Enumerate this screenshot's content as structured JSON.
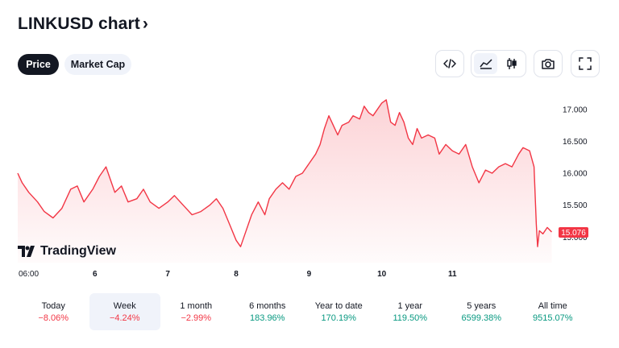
{
  "header": {
    "title": "LINKUSD chart",
    "chevron": "›"
  },
  "tabs": [
    {
      "label": "Price",
      "active": true
    },
    {
      "label": "Market Cap",
      "active": false
    }
  ],
  "toolbar": {
    "embed_icon": "code-icon",
    "area_icon": "area-chart-icon",
    "candle_icon": "candlestick-icon",
    "snapshot_icon": "camera-icon",
    "fullscreen_icon": "fullscreen-icon"
  },
  "branding": {
    "logo_text": "TradingView"
  },
  "colors": {
    "line": "#f23645",
    "last_price_bg": "#f23645",
    "positive": "#089981",
    "negative": "#f23645"
  },
  "chart_data": {
    "type": "area",
    "x_tick_labels": [
      "06:00",
      "6",
      "7",
      "8",
      "9",
      "10",
      "11"
    ],
    "y_tick_labels": [
      "17.000",
      "16.500",
      "16.000",
      "15.500",
      "15.000"
    ],
    "ylim": [
      14.6,
      17.3
    ],
    "last_price_label": "15.076",
    "points": [
      [
        0,
        16.0
      ],
      [
        0.1,
        15.85
      ],
      [
        0.25,
        15.7
      ],
      [
        0.45,
        15.55
      ],
      [
        0.6,
        15.4
      ],
      [
        0.8,
        15.3
      ],
      [
        1.0,
        15.45
      ],
      [
        1.2,
        15.75
      ],
      [
        1.35,
        15.8
      ],
      [
        1.5,
        15.55
      ],
      [
        1.7,
        15.75
      ],
      [
        1.85,
        15.95
      ],
      [
        2.0,
        16.1
      ],
      [
        2.1,
        15.9
      ],
      [
        2.2,
        15.7
      ],
      [
        2.35,
        15.8
      ],
      [
        2.5,
        15.55
      ],
      [
        2.7,
        15.6
      ],
      [
        2.85,
        15.75
      ],
      [
        3.0,
        15.55
      ],
      [
        3.2,
        15.45
      ],
      [
        3.4,
        15.55
      ],
      [
        3.55,
        15.65
      ],
      [
        3.75,
        15.5
      ],
      [
        3.95,
        15.35
      ],
      [
        4.15,
        15.4
      ],
      [
        4.35,
        15.5
      ],
      [
        4.5,
        15.6
      ],
      [
        4.65,
        15.45
      ],
      [
        4.8,
        15.2
      ],
      [
        4.95,
        14.95
      ],
      [
        5.05,
        14.85
      ],
      [
        5.15,
        15.05
      ],
      [
        5.3,
        15.35
      ],
      [
        5.45,
        15.55
      ],
      [
        5.6,
        15.35
      ],
      [
        5.7,
        15.6
      ],
      [
        5.85,
        15.75
      ],
      [
        6.0,
        15.85
      ],
      [
        6.15,
        15.75
      ],
      [
        6.3,
        15.95
      ],
      [
        6.45,
        16.0
      ],
      [
        6.6,
        16.15
      ],
      [
        6.75,
        16.3
      ],
      [
        6.85,
        16.45
      ],
      [
        6.95,
        16.7
      ],
      [
        7.05,
        16.9
      ],
      [
        7.15,
        16.75
      ],
      [
        7.25,
        16.6
      ],
      [
        7.35,
        16.75
      ],
      [
        7.5,
        16.8
      ],
      [
        7.6,
        16.9
      ],
      [
        7.75,
        16.85
      ],
      [
        7.85,
        17.05
      ],
      [
        7.95,
        16.95
      ],
      [
        8.05,
        16.9
      ],
      [
        8.15,
        17.0
      ],
      [
        8.25,
        17.1
      ],
      [
        8.35,
        17.15
      ],
      [
        8.45,
        16.8
      ],
      [
        8.55,
        16.75
      ],
      [
        8.65,
        16.95
      ],
      [
        8.75,
        16.8
      ],
      [
        8.85,
        16.55
      ],
      [
        8.95,
        16.45
      ],
      [
        9.05,
        16.7
      ],
      [
        9.15,
        16.55
      ],
      [
        9.3,
        16.6
      ],
      [
        9.45,
        16.55
      ],
      [
        9.55,
        16.3
      ],
      [
        9.7,
        16.45
      ],
      [
        9.85,
        16.35
      ],
      [
        10.0,
        16.3
      ],
      [
        10.15,
        16.45
      ],
      [
        10.3,
        16.1
      ],
      [
        10.45,
        15.85
      ],
      [
        10.6,
        16.05
      ],
      [
        10.75,
        16.0
      ],
      [
        10.9,
        16.1
      ],
      [
        11.05,
        16.15
      ],
      [
        11.2,
        16.1
      ],
      [
        11.35,
        16.3
      ],
      [
        11.45,
        16.4
      ],
      [
        11.6,
        16.35
      ],
      [
        11.7,
        16.1
      ],
      [
        11.75,
        15.2
      ],
      [
        11.78,
        14.85
      ],
      [
        11.82,
        15.1
      ],
      [
        11.9,
        15.05
      ],
      [
        12.0,
        15.15
      ],
      [
        12.1,
        15.08
      ]
    ],
    "x_domain": [
      0,
      12.2
    ],
    "x_tick_positions": [
      0.2,
      1.75,
      3.4,
      4.95,
      6.6,
      8.25,
      9.85
    ]
  },
  "periods": [
    {
      "label": "Today",
      "change": "−8.06%",
      "direction": "neg",
      "selected": false
    },
    {
      "label": "Week",
      "change": "−4.24%",
      "direction": "neg",
      "selected": true
    },
    {
      "label": "1 month",
      "change": "−2.99%",
      "direction": "neg",
      "selected": false
    },
    {
      "label": "6 months",
      "change": "183.96%",
      "direction": "pos",
      "selected": false
    },
    {
      "label": "Year to date",
      "change": "170.19%",
      "direction": "pos",
      "selected": false
    },
    {
      "label": "1 year",
      "change": "119.50%",
      "direction": "pos",
      "selected": false
    },
    {
      "label": "5 years",
      "change": "6599.38%",
      "direction": "pos",
      "selected": false
    },
    {
      "label": "All time",
      "change": "9515.07%",
      "direction": "pos",
      "selected": false
    }
  ]
}
